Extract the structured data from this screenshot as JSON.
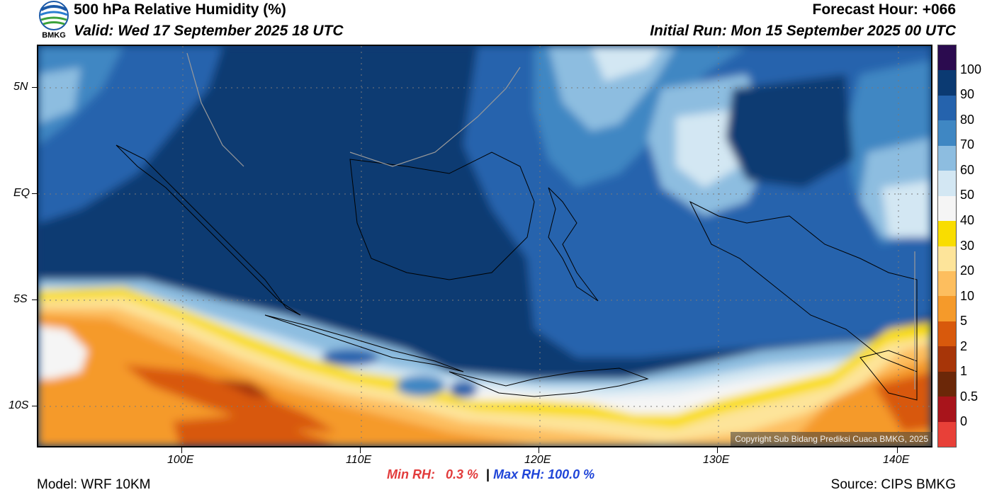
{
  "header": {
    "title": "500 hPa Relative Humidity (%)",
    "valid": "Valid: Wed 17 September 2025 18 UTC",
    "forecast_hour": "Forecast Hour: +066",
    "initial_run": "Initial Run: Mon 15 September 2025 00 UTC",
    "logo_text": "BMKG"
  },
  "map": {
    "lat_labels": [
      "5N",
      "EQ",
      "5S",
      "10S"
    ],
    "lon_labels": [
      "100E",
      "110E",
      "120E",
      "130E",
      "140E"
    ],
    "copyright": "Copyright Sub Bidang Prediksi Cuaca BMKG, 2025"
  },
  "colorbar": {
    "labels": [
      "100",
      "90",
      "80",
      "70",
      "60",
      "50",
      "40",
      "30",
      "20",
      "10",
      "5",
      "2",
      "1",
      "0.5",
      "0"
    ],
    "colors": [
      "#2b0b4f",
      "#0b3a72",
      "#2563ad",
      "#3f87c3",
      "#8dbde0",
      "#d3e7f3",
      "#f5f5f5",
      "#f9dd00",
      "#fde49a",
      "#fdbe5e",
      "#f59a2a",
      "#d8590c",
      "#a73508",
      "#6b2708",
      "#a8141b",
      "#e84038"
    ]
  },
  "footer": {
    "model": "Model: WRF 10KM",
    "min_label": "Min RH:",
    "min_value": "0.3 %",
    "separator": "|",
    "max_label": "Max RH:",
    "max_value": "100.0 %",
    "source": "Source: CIPS BMKG"
  }
}
